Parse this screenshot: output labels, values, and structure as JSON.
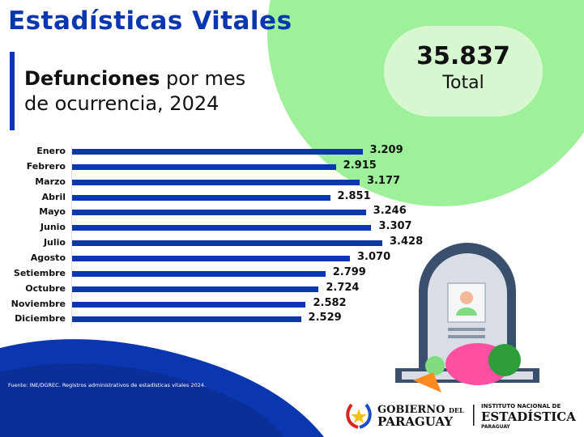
{
  "header": {
    "title": "Estadísticas Vitales",
    "subtitle_bold": "Defunciones",
    "subtitle_rest_1": " por mes",
    "subtitle_rest_2": "de ocurrencia, 2024"
  },
  "total": {
    "value": "35.837",
    "label": "Total"
  },
  "source": "Fuente: INE/DGREC. Registros administrativos de estadísticas vitales 2024.",
  "logos": {
    "gov": "GOBIERNO DEL PARAGUAY",
    "ine_top": "INSTITUTO NACIONAL DE",
    "ine_main": "ESTADÍSTICA",
    "ine_bottom": "PARAGUAY"
  },
  "colors": {
    "primary": "#0a36b0",
    "green": "#9ef09a",
    "light_green": "#d6f7cf"
  },
  "chart_data": {
    "type": "bar",
    "orientation": "horizontal",
    "categories": [
      "Enero",
      "Febrero",
      "Marzo",
      "Abril",
      "Mayo",
      "Junio",
      "Julio",
      "Agosto",
      "Setiembre",
      "Octubre",
      "Noviembre",
      "Diciembre"
    ],
    "values": [
      3209,
      2915,
      3177,
      2851,
      3246,
      3307,
      3428,
      3070,
      2799,
      2724,
      2582,
      2529
    ],
    "value_labels": [
      "3.209",
      "2.915",
      "3.177",
      "2.851",
      "3.246",
      "3.307",
      "3.428",
      "3.070",
      "2.799",
      "2.724",
      "2.582",
      "2.529"
    ],
    "xlim": [
      0,
      3428
    ],
    "grid": false,
    "legend": "none",
    "color": "#0a36b0"
  }
}
